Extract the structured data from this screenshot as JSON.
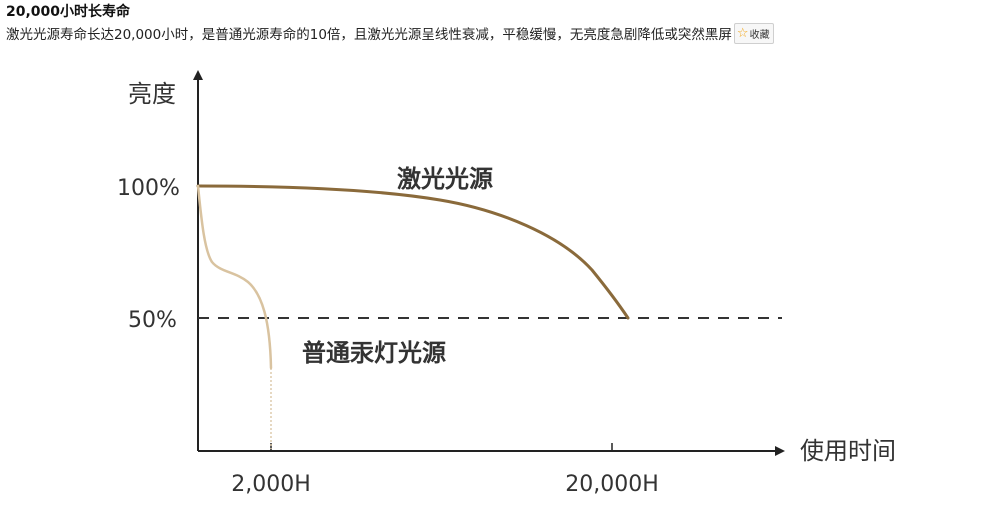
{
  "header": {
    "title": "20,000小时长寿命",
    "description": "激光光源寿命长达20,000小时，是普通光源寿命的10倍，且激光光源呈线性衰减，平稳缓慢，无亮度急剧降低或突然黑屏",
    "fav_label": "收藏",
    "fav_icon": "star-icon"
  },
  "chart_data": {
    "type": "line",
    "ylabel": "亮度",
    "xlabel": "使用时间",
    "y_ticks": [
      "100%",
      "50%"
    ],
    "x_ticks": [
      "2,000H",
      "20,000H"
    ],
    "reference_line": {
      "y": 50,
      "style": "dashed"
    },
    "series": [
      {
        "name": "激光光源",
        "color": "#8a6a3b",
        "points": [
          [
            0,
            100
          ],
          [
            2000,
            100
          ],
          [
            5000,
            99
          ],
          [
            8000,
            97
          ],
          [
            11000,
            93
          ],
          [
            14000,
            86
          ],
          [
            17000,
            75
          ],
          [
            19000,
            63
          ],
          [
            20000,
            50
          ]
        ]
      },
      {
        "name": "普通汞灯光源",
        "color": "#d9c3a0",
        "points": [
          [
            0,
            100
          ],
          [
            100,
            88
          ],
          [
            200,
            75
          ],
          [
            350,
            70
          ],
          [
            600,
            67.5
          ],
          [
            900,
            66
          ],
          [
            1200,
            64
          ],
          [
            1500,
            60
          ],
          [
            1750,
            53
          ],
          [
            1950,
            44
          ],
          [
            2000,
            35
          ]
        ]
      }
    ]
  }
}
